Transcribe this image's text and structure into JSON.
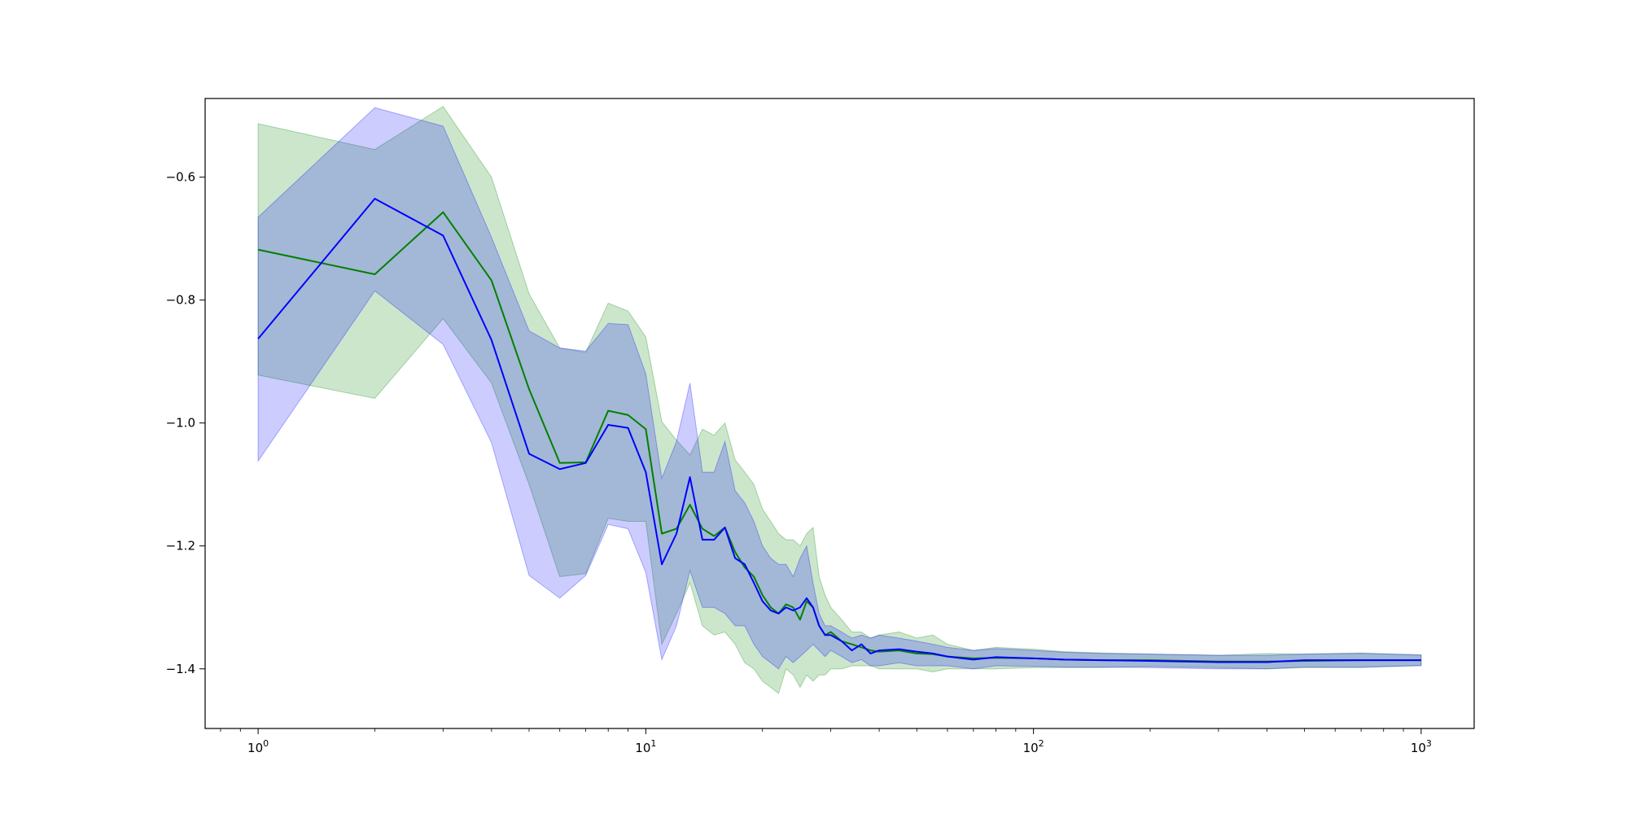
{
  "chart_data": {
    "type": "line",
    "title": "",
    "xlabel": "",
    "ylabel": "",
    "xscale": "log",
    "xlim": [
      0.73,
      1370
    ],
    "ylim": [
      -1.497,
      -0.472
    ],
    "grid": false,
    "legend": "none",
    "x_ticks": [
      {
        "value": 1,
        "base": "10",
        "exp": "0"
      },
      {
        "value": 10,
        "base": "10",
        "exp": "1"
      },
      {
        "value": 100,
        "base": "10",
        "exp": "2"
      },
      {
        "value": 1000,
        "base": "10",
        "exp": "3"
      }
    ],
    "y_ticks": [
      {
        "value": -0.6,
        "label": "−0.6"
      },
      {
        "value": -0.8,
        "label": "−0.8"
      },
      {
        "value": -1.0,
        "label": "−1.0"
      },
      {
        "value": -1.2,
        "label": "−1.2"
      },
      {
        "value": -1.4,
        "label": "−1.4"
      }
    ],
    "series": [
      {
        "color": "#008000",
        "band_color": "#008000",
        "band_opacity": 0.2,
        "x": [
          1,
          2,
          3,
          4,
          5,
          6,
          7,
          8,
          9,
          10,
          11,
          12,
          13,
          14,
          15,
          16,
          17,
          18,
          19,
          20,
          21,
          22,
          23,
          24,
          25,
          26,
          27,
          28,
          29,
          30,
          32,
          34,
          36,
          38,
          40,
          45,
          50,
          55,
          60,
          70,
          80,
          100,
          120,
          150,
          200,
          300,
          400,
          500,
          700,
          1000
        ],
        "y": [
          -0.718,
          -0.758,
          -0.657,
          -0.768,
          -0.945,
          -1.065,
          -1.064,
          -0.98,
          -0.987,
          -1.01,
          -1.18,
          -1.172,
          -1.133,
          -1.172,
          -1.184,
          -1.17,
          -1.21,
          -1.235,
          -1.25,
          -1.28,
          -1.3,
          -1.31,
          -1.295,
          -1.3,
          -1.32,
          -1.29,
          -1.3,
          -1.33,
          -1.345,
          -1.34,
          -1.355,
          -1.36,
          -1.365,
          -1.37,
          -1.372,
          -1.37,
          -1.375,
          -1.376,
          -1.38,
          -1.383,
          -1.382,
          -1.383,
          -1.385,
          -1.386,
          -1.386,
          -1.388,
          -1.388,
          -1.387,
          -1.386,
          -1.386
        ],
        "y_upper": [
          -0.513,
          -0.555,
          -0.485,
          -0.6,
          -0.79,
          -0.878,
          -0.885,
          -0.805,
          -0.818,
          -0.86,
          -0.998,
          -1.028,
          -1.052,
          -1.01,
          -1.02,
          -1.0,
          -1.06,
          -1.08,
          -1.1,
          -1.14,
          -1.16,
          -1.18,
          -1.19,
          -1.19,
          -1.2,
          -1.18,
          -1.17,
          -1.25,
          -1.28,
          -1.3,
          -1.32,
          -1.34,
          -1.34,
          -1.35,
          -1.345,
          -1.34,
          -1.35,
          -1.345,
          -1.36,
          -1.37,
          -1.365,
          -1.368,
          -1.372,
          -1.374,
          -1.376,
          -1.378,
          -1.375,
          -1.376,
          -1.374,
          -1.378
        ],
        "y_lower": [
          -0.922,
          -0.96,
          -0.83,
          -0.935,
          -1.1,
          -1.25,
          -1.245,
          -1.155,
          -1.16,
          -1.16,
          -1.36,
          -1.31,
          -1.26,
          -1.33,
          -1.345,
          -1.34,
          -1.36,
          -1.39,
          -1.4,
          -1.42,
          -1.43,
          -1.44,
          -1.4,
          -1.41,
          -1.43,
          -1.41,
          -1.42,
          -1.41,
          -1.41,
          -1.4,
          -1.4,
          -1.395,
          -1.395,
          -1.395,
          -1.4,
          -1.4,
          -1.4,
          -1.405,
          -1.4,
          -1.4,
          -1.4,
          -1.398,
          -1.398,
          -1.398,
          -1.396,
          -1.398,
          -1.4,
          -1.398,
          -1.398,
          -1.394
        ]
      },
      {
        "color": "#0000ff",
        "band_color": "#0000ff",
        "band_opacity": 0.2,
        "x": [
          1,
          2,
          3,
          4,
          5,
          6,
          7,
          8,
          9,
          10,
          11,
          12,
          13,
          14,
          15,
          16,
          17,
          18,
          19,
          20,
          21,
          22,
          23,
          24,
          25,
          26,
          27,
          28,
          29,
          30,
          32,
          34,
          36,
          38,
          40,
          45,
          50,
          55,
          60,
          70,
          80,
          100,
          120,
          150,
          200,
          300,
          400,
          500,
          700,
          1000
        ],
        "y": [
          -0.863,
          -0.635,
          -0.695,
          -0.865,
          -1.05,
          -1.075,
          -1.065,
          -1.003,
          -1.008,
          -1.08,
          -1.23,
          -1.18,
          -1.088,
          -1.19,
          -1.19,
          -1.17,
          -1.22,
          -1.23,
          -1.26,
          -1.29,
          -1.305,
          -1.31,
          -1.3,
          -1.305,
          -1.3,
          -1.285,
          -1.3,
          -1.33,
          -1.345,
          -1.345,
          -1.355,
          -1.37,
          -1.36,
          -1.375,
          -1.37,
          -1.368,
          -1.372,
          -1.375,
          -1.38,
          -1.385,
          -1.381,
          -1.383,
          -1.385,
          -1.386,
          -1.387,
          -1.389,
          -1.389,
          -1.386,
          -1.386,
          -1.386
        ],
        "y_upper": [
          -0.665,
          -0.487,
          -0.517,
          -0.698,
          -0.85,
          -0.878,
          -0.883,
          -0.838,
          -0.84,
          -0.92,
          -1.09,
          -1.03,
          -0.935,
          -1.08,
          -1.08,
          -1.03,
          -1.11,
          -1.13,
          -1.16,
          -1.2,
          -1.22,
          -1.23,
          -1.23,
          -1.25,
          -1.22,
          -1.2,
          -1.26,
          -1.31,
          -1.33,
          -1.33,
          -1.34,
          -1.35,
          -1.345,
          -1.35,
          -1.345,
          -1.35,
          -1.355,
          -1.36,
          -1.365,
          -1.37,
          -1.367,
          -1.37,
          -1.373,
          -1.375,
          -1.376,
          -1.378,
          -1.378,
          -1.376,
          -1.375,
          -1.377
        ],
        "y_lower": [
          -1.062,
          -0.785,
          -0.872,
          -1.032,
          -1.248,
          -1.285,
          -1.248,
          -1.165,
          -1.172,
          -1.243,
          -1.385,
          -1.33,
          -1.24,
          -1.3,
          -1.3,
          -1.31,
          -1.33,
          -1.33,
          -1.36,
          -1.38,
          -1.39,
          -1.4,
          -1.38,
          -1.39,
          -1.38,
          -1.37,
          -1.36,
          -1.37,
          -1.38,
          -1.37,
          -1.38,
          -1.39,
          -1.385,
          -1.395,
          -1.395,
          -1.39,
          -1.395,
          -1.395,
          -1.395,
          -1.4,
          -1.395,
          -1.396,
          -1.397,
          -1.397,
          -1.398,
          -1.4,
          -1.4,
          -1.397,
          -1.397,
          -1.395
        ]
      }
    ]
  }
}
